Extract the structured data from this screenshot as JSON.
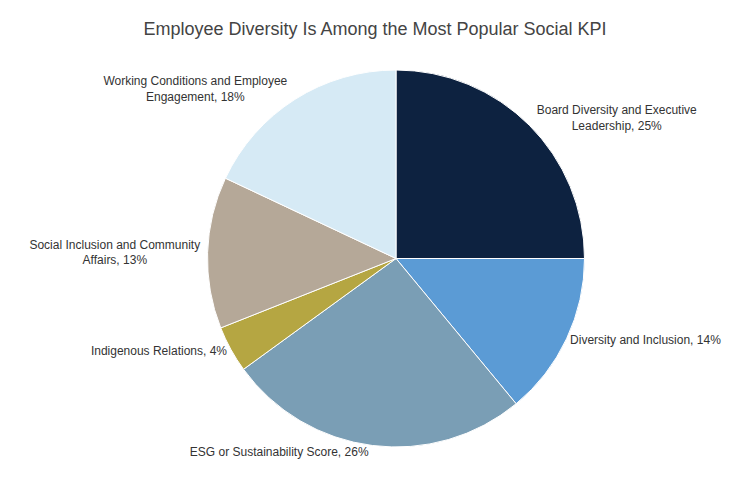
{
  "chart_data": {
    "type": "pie",
    "title": "Employee Diversity Is Among the Most Popular Social KPI",
    "categories": [
      "Board Diversity and Executive\nLeadership, 25%",
      "Diversity and Inclusion, 14%",
      "ESG or Sustainability Score, 26%",
      "Indigenous Relations, 4%",
      "Social Inclusion and Community\nAffairs, 13%",
      "Working Conditions and Employee\nEngagement, 18%"
    ],
    "values": [
      25,
      14,
      26,
      4,
      13,
      18
    ],
    "colors": [
      "#0d2240",
      "#5b9bd5",
      "#7a9eb5",
      "#b5a642",
      "#b5a898",
      "#d6eaf5"
    ]
  }
}
